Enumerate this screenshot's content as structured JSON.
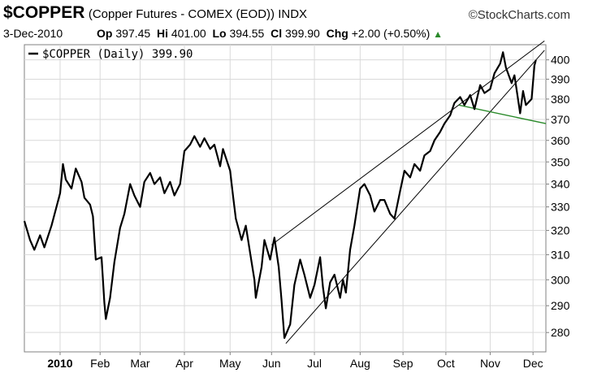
{
  "header": {
    "symbol": "$COPPER",
    "description": "(Copper Futures - COMEX (EOD)) INDX",
    "brand": "StockCharts.com",
    "date": "3-Dec-2010",
    "op_label": "Op",
    "op_value": "397.45",
    "hi_label": "Hi",
    "hi_value": "401.00",
    "lo_label": "Lo",
    "lo_value": "394.55",
    "cl_label": "Cl",
    "cl_value": "399.90",
    "chg_label": "Chg",
    "chg_value": "+2.00 (+0.50%)"
  },
  "legend": {
    "text": "$COPPER (Daily) 399.90"
  },
  "colors": {
    "price": "#000000",
    "trendline": "#000000",
    "support": "#2a8a2a",
    "grid": "#d9d9d9",
    "up_arrow": "#2a8a2a"
  },
  "chart_data": {
    "type": "line",
    "title": "$COPPER (Copper Futures - COMEX (EOD)) INDX",
    "ylabel": "",
    "xlabel": "",
    "ylim": [
      273,
      408
    ],
    "y_axis": "log",
    "y_axis_side": "right",
    "grid": true,
    "yticks": [
      280,
      290,
      300,
      310,
      320,
      330,
      340,
      350,
      360,
      370,
      380,
      390,
      400
    ],
    "xticks": [
      {
        "label": "2010",
        "date": "2010-01-04"
      },
      {
        "label": "Feb",
        "date": "2010-02-01"
      },
      {
        "label": "Mar",
        "date": "2010-03-01"
      },
      {
        "label": "Apr",
        "date": "2010-04-01"
      },
      {
        "label": "May",
        "date": "2010-05-03"
      },
      {
        "label": "Jun",
        "date": "2010-06-01"
      },
      {
        "label": "Jul",
        "date": "2010-07-01"
      },
      {
        "label": "Aug",
        "date": "2010-08-02"
      },
      {
        "label": "Sep",
        "date": "2010-09-01"
      },
      {
        "label": "Oct",
        "date": "2010-10-01"
      },
      {
        "label": "Nov",
        "date": "2010-11-01"
      },
      {
        "label": "Dec",
        "date": "2010-12-01"
      }
    ],
    "x_start": "2009-12-10",
    "x_end": "2010-12-10",
    "series": [
      {
        "name": "$COPPER",
        "points": [
          [
            "2009-12-10",
            324
          ],
          [
            "2009-12-14",
            316
          ],
          [
            "2009-12-17",
            312
          ],
          [
            "2009-12-21",
            318
          ],
          [
            "2009-12-24",
            313
          ],
          [
            "2009-12-29",
            322
          ],
          [
            "2010-01-04",
            336
          ],
          [
            "2010-01-06",
            349
          ],
          [
            "2010-01-08",
            342
          ],
          [
            "2010-01-12",
            338
          ],
          [
            "2010-01-15",
            347
          ],
          [
            "2010-01-19",
            341
          ],
          [
            "2010-01-21",
            334
          ],
          [
            "2010-01-25",
            331
          ],
          [
            "2010-01-27",
            326
          ],
          [
            "2010-01-29",
            308
          ],
          [
            "2010-02-02",
            309
          ],
          [
            "2010-02-04",
            291
          ],
          [
            "2010-02-05",
            285
          ],
          [
            "2010-02-08",
            293
          ],
          [
            "2010-02-11",
            307
          ],
          [
            "2010-02-15",
            321
          ],
          [
            "2010-02-18",
            327
          ],
          [
            "2010-02-22",
            340
          ],
          [
            "2010-02-25",
            335
          ],
          [
            "2010-03-01",
            330
          ],
          [
            "2010-03-04",
            341
          ],
          [
            "2010-03-08",
            345
          ],
          [
            "2010-03-11",
            340
          ],
          [
            "2010-03-15",
            343
          ],
          [
            "2010-03-18",
            336
          ],
          [
            "2010-03-22",
            341
          ],
          [
            "2010-03-25",
            335
          ],
          [
            "2010-03-29",
            340
          ],
          [
            "2010-04-01",
            355
          ],
          [
            "2010-04-05",
            358
          ],
          [
            "2010-04-08",
            362
          ],
          [
            "2010-04-12",
            357
          ],
          [
            "2010-04-15",
            361
          ],
          [
            "2010-04-19",
            356
          ],
          [
            "2010-04-22",
            358
          ],
          [
            "2010-04-26",
            348
          ],
          [
            "2010-04-28",
            356
          ],
          [
            "2010-05-03",
            346
          ],
          [
            "2010-05-05",
            335
          ],
          [
            "2010-05-07",
            325
          ],
          [
            "2010-05-11",
            316
          ],
          [
            "2010-05-14",
            322
          ],
          [
            "2010-05-18",
            307
          ],
          [
            "2010-05-20",
            300
          ],
          [
            "2010-05-21",
            293
          ],
          [
            "2010-05-25",
            305
          ],
          [
            "2010-05-27",
            316
          ],
          [
            "2010-05-31",
            308
          ],
          [
            "2010-06-03",
            317
          ],
          [
            "2010-06-06",
            305
          ],
          [
            "2010-06-08",
            292
          ],
          [
            "2010-06-10",
            278
          ],
          [
            "2010-06-14",
            283
          ],
          [
            "2010-06-17",
            298
          ],
          [
            "2010-06-21",
            308
          ],
          [
            "2010-06-24",
            302
          ],
          [
            "2010-06-28",
            293
          ],
          [
            "2010-07-01",
            298
          ],
          [
            "2010-07-05",
            309
          ],
          [
            "2010-07-07",
            297
          ],
          [
            "2010-07-09",
            289
          ],
          [
            "2010-07-12",
            299
          ],
          [
            "2010-07-15",
            302
          ],
          [
            "2010-07-19",
            293
          ],
          [
            "2010-07-21",
            300
          ],
          [
            "2010-07-23",
            295
          ],
          [
            "2010-07-26",
            312
          ],
          [
            "2010-07-29",
            322
          ],
          [
            "2010-08-02",
            338
          ],
          [
            "2010-08-05",
            340
          ],
          [
            "2010-08-09",
            335
          ],
          [
            "2010-08-12",
            328
          ],
          [
            "2010-08-16",
            333
          ],
          [
            "2010-08-19",
            333
          ],
          [
            "2010-08-23",
            327
          ],
          [
            "2010-08-26",
            325
          ],
          [
            "2010-08-30",
            337
          ],
          [
            "2010-09-02",
            346
          ],
          [
            "2010-09-06",
            343
          ],
          [
            "2010-09-09",
            349
          ],
          [
            "2010-09-13",
            346
          ],
          [
            "2010-09-16",
            353
          ],
          [
            "2010-09-20",
            355
          ],
          [
            "2010-09-23",
            360
          ],
          [
            "2010-09-27",
            364
          ],
          [
            "2010-09-30",
            368
          ],
          [
            "2010-10-04",
            372
          ],
          [
            "2010-10-07",
            378
          ],
          [
            "2010-10-11",
            381
          ],
          [
            "2010-10-14",
            377
          ],
          [
            "2010-10-18",
            382
          ],
          [
            "2010-10-21",
            375
          ],
          [
            "2010-10-25",
            387
          ],
          [
            "2010-10-28",
            383
          ],
          [
            "2010-11-01",
            385
          ],
          [
            "2010-11-04",
            393
          ],
          [
            "2010-11-08",
            398
          ],
          [
            "2010-11-10",
            404
          ],
          [
            "2010-11-12",
            396
          ],
          [
            "2010-11-16",
            388
          ],
          [
            "2010-11-18",
            392
          ],
          [
            "2010-11-22",
            373
          ],
          [
            "2010-11-24",
            384
          ],
          [
            "2010-11-26",
            377
          ],
          [
            "2010-11-30",
            380
          ],
          [
            "2010-12-02",
            397
          ],
          [
            "2010-12-03",
            399.9
          ]
        ]
      }
    ],
    "trendlines": [
      {
        "style": "channel-upper",
        "color": "black",
        "from": [
          "2010-06-01",
          314
        ],
        "to": [
          "2010-12-09",
          410
        ]
      },
      {
        "style": "channel-lower",
        "color": "black",
        "from": [
          "2010-06-11",
          276
        ],
        "to": [
          "2010-12-09",
          405
        ]
      },
      {
        "style": "support",
        "color": "green",
        "from": [
          "2010-10-10",
          377
        ],
        "to": [
          "2010-12-10",
          368
        ]
      }
    ]
  }
}
